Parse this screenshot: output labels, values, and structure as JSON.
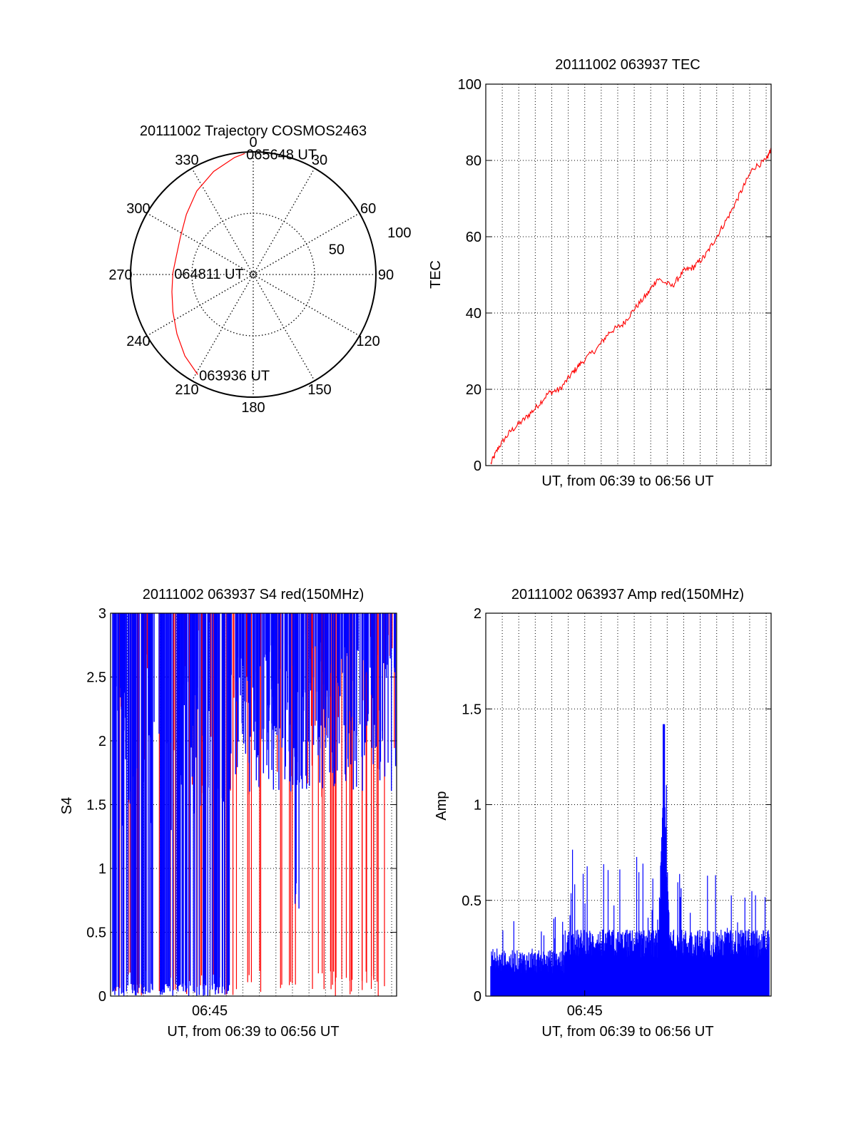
{
  "chart_data": [
    {
      "id": "trajectory",
      "type": "polar",
      "title": "20111002 Trajectory COSMOS2463",
      "angle_labels": [
        "0",
        "30",
        "60",
        "90",
        "120",
        "150",
        "180",
        "210",
        "240",
        "270",
        "300",
        "330"
      ],
      "radial_labels": [
        "50",
        "100"
      ],
      "series": [
        {
          "color": "#ff0000",
          "points": [
            {
              "az": 209,
              "el": 6
            },
            {
              "az": 220,
              "el": 12
            },
            {
              "az": 232,
              "el": 19
            },
            {
              "az": 245,
              "el": 25
            },
            {
              "az": 258,
              "el": 29
            },
            {
              "az": 271,
              "el": 31
            },
            {
              "az": 284,
              "el": 32
            },
            {
              "az": 297,
              "el": 30
            },
            {
              "az": 312,
              "el": 24
            },
            {
              "az": 326,
              "el": 16
            },
            {
              "az": 339,
              "el": 9
            },
            {
              "az": 351,
              "el": 3
            },
            {
              "az": 356,
              "el": 1
            }
          ]
        }
      ],
      "annotations": [
        {
          "text": "065648 UT",
          "az": 356,
          "el": 1
        },
        {
          "text": "064811 UT",
          "az": 271,
          "el": 31
        },
        {
          "text": "063936 UT",
          "az": 209,
          "el": 6
        }
      ]
    },
    {
      "id": "tec",
      "type": "line",
      "title": "20111002 063937 TEC",
      "xlabel": "UT, from 06:39 to 06:56 UT",
      "ylabel": "TEC",
      "ylim": [
        0,
        100
      ],
      "yticks": [
        "0",
        "20",
        "40",
        "60",
        "80",
        "100"
      ],
      "xlim_minutes": [
        0,
        17.3
      ],
      "x_minutes": [
        0.3,
        0.8,
        1.5,
        2.3,
        3.0,
        3.8,
        4.5,
        5.2,
        5.8,
        6.8,
        7.5,
        8.3,
        9.0,
        9.8,
        10.4,
        11.3,
        12.0,
        12.6,
        13.3,
        14.0,
        14.8,
        15.5,
        16.2,
        17.0,
        17.3
      ],
      "y": [
        0.5,
        5,
        9,
        12,
        15,
        19,
        20,
        24,
        27,
        31,
        35,
        37,
        41,
        45,
        49,
        47,
        51,
        52,
        55,
        60,
        66,
        72,
        78,
        80,
        83
      ],
      "grid": true,
      "series": [
        {
          "color": "#ff0000"
        }
      ]
    },
    {
      "id": "s4",
      "type": "bar",
      "title": "20111002 063937 S4 red(150MHz)",
      "xlabel": "UT, from 06:39 to 06:56 UT",
      "ylabel": "S4",
      "ylim": [
        0,
        3
      ],
      "yticks": [
        "0",
        "0.5",
        "1",
        "1.5",
        "2",
        "2.5",
        "3"
      ],
      "xticks": [
        {
          "label": "06:45",
          "minute": 6
        }
      ],
      "xlim_minutes": [
        0,
        17.3
      ],
      "grid": true,
      "series": [
        {
          "color": "#ff0000",
          "name": "red",
          "pattern": "spikes"
        },
        {
          "color": "#0000ff",
          "name": "blue",
          "pattern": "spikes"
        }
      ]
    },
    {
      "id": "amp",
      "type": "bar",
      "title": "20111002 063937 Amp red(150MHz)",
      "xlabel": "UT, from 06:39 to 06:56 UT",
      "ylabel": "Amp",
      "ylim": [
        0,
        2
      ],
      "yticks": [
        "0",
        "0.5",
        "1",
        "1.5",
        "2"
      ],
      "xticks": [
        {
          "label": "06:45",
          "minute": 6
        }
      ],
      "xlim_minutes": [
        0,
        17.3
      ],
      "grid": true,
      "series": [
        {
          "color": "#0000ff"
        }
      ],
      "peak": {
        "minute": 10.8,
        "value": 1.42
      }
    }
  ]
}
